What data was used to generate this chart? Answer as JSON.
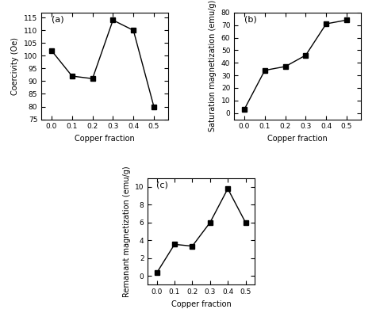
{
  "copper_x": [
    0.0,
    0.1,
    0.2,
    0.3,
    0.4,
    0.5
  ],
  "coercivity_y": [
    102,
    92,
    91,
    114,
    110,
    80
  ],
  "coercivity_ylabel": "Coercivity (Oe)",
  "coercivity_ylim": [
    75,
    117
  ],
  "coercivity_yticks": [
    75,
    80,
    85,
    90,
    95,
    100,
    105,
    110,
    115
  ],
  "coercivity_label": "(a)",
  "saturation_y": [
    3,
    34,
    37,
    46,
    71,
    74
  ],
  "saturation_ylabel": "Saturation magnetization (emu/g)",
  "saturation_ylim": [
    -5,
    80
  ],
  "saturation_yticks": [
    0,
    10,
    20,
    30,
    40,
    50,
    60,
    70,
    80
  ],
  "saturation_label": "(b)",
  "remanant_y": [
    0.35,
    3.55,
    3.35,
    6.0,
    9.8,
    6.0
  ],
  "remanant_ylabel": "Remanant magnetization (emu/g)",
  "remanant_ylim": [
    -1,
    11
  ],
  "remanant_yticks": [
    0,
    2,
    4,
    6,
    8,
    10
  ],
  "remanant_label": "(c)",
  "xlabel": "Copper fraction",
  "xticks": [
    0.0,
    0.1,
    0.2,
    0.3,
    0.4,
    0.5
  ],
  "line_color": "black",
  "marker": "s",
  "marker_size": 4,
  "line_width": 1.0,
  "bg_color": "#ffffff",
  "label_fontsize": 7,
  "tick_fontsize": 6.5,
  "annot_fontsize": 8
}
